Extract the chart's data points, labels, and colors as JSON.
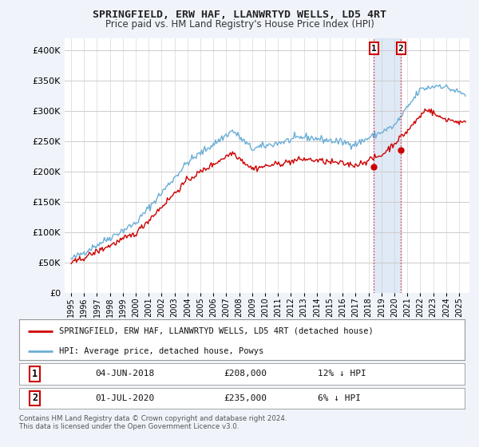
{
  "title": "SPRINGFIELD, ERW HAF, LLANWRTYD WELLS, LD5 4RT",
  "subtitle": "Price paid vs. HM Land Registry's House Price Index (HPI)",
  "ytick_values": [
    0,
    50000,
    100000,
    150000,
    200000,
    250000,
    300000,
    350000,
    400000
  ],
  "ylim": [
    0,
    420000
  ],
  "legend_line1": "SPRINGFIELD, ERW HAF, LLANWRTYD WELLS, LD5 4RT (detached house)",
  "legend_line2": "HPI: Average price, detached house, Powys",
  "transaction1_date": "04-JUN-2018",
  "transaction1_price": "£208,000",
  "transaction1_hpi": "12% ↓ HPI",
  "transaction2_date": "01-JUL-2020",
  "transaction2_price": "£235,000",
  "transaction2_hpi": "6% ↓ HPI",
  "footnote": "Contains HM Land Registry data © Crown copyright and database right 2024.\nThis data is licensed under the Open Government Licence v3.0.",
  "hpi_color": "#6aaed6",
  "price_color": "#cc0000",
  "marker1_x": 2018.42,
  "marker1_y": 208000,
  "marker2_x": 2020.5,
  "marker2_y": 235000,
  "background_color": "#f0f4fa",
  "plot_bg_color": "#ffffff",
  "grid_color": "#cccccc",
  "xlim_left": 1994.5,
  "xlim_right": 2025.8
}
